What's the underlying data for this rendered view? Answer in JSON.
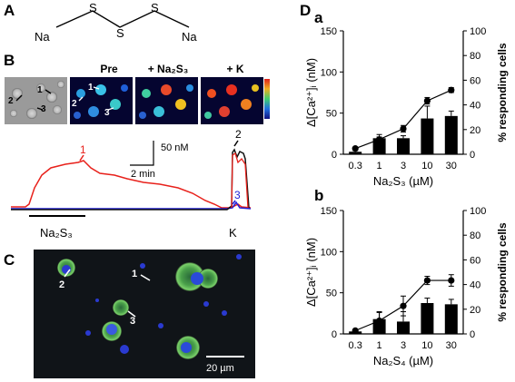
{
  "panel_labels": {
    "A": "A",
    "B": "B",
    "C": "C",
    "D": "D",
    "Da": "a",
    "Db": "b"
  },
  "molecule": {
    "left": "Na",
    "right": "Na",
    "s1": "S",
    "s2": "S",
    "s3": "S"
  },
  "micrographs": {
    "pre_label": "Pre",
    "na2s3_label": "+ Na₂S₃",
    "k_label": "+ K",
    "dic_cell_labels": [
      "1",
      "2",
      "3"
    ],
    "pre_cell_labels": [
      "1",
      "2",
      "3"
    ]
  },
  "trace": {
    "scale_y": "50 nM",
    "scale_x": "2 min",
    "stim_label": "Na₂S₃",
    "k_label": "K",
    "trace_labels": {
      "red": "1",
      "black": "2",
      "blue": "3"
    },
    "colors": {
      "red": "#e8211b",
      "black": "#111111",
      "blue": "#1f1fd6"
    }
  },
  "immuno": {
    "cell_labels": [
      "1",
      "2",
      "3"
    ],
    "scalebar": "20 µm"
  },
  "chart_data": [
    {
      "type": "bar",
      "panel": "a",
      "categories": [
        "0.3",
        "1",
        "3",
        "10",
        "30"
      ],
      "xlabel": "Na₂S₃ (µM)",
      "ylabel": "Δ[Ca²⁺]ᵢ (nM)",
      "y2label": "% responding cells",
      "ylim": [
        0,
        150
      ],
      "y2lim": [
        0,
        100
      ],
      "yticks": [
        0,
        50,
        100,
        150
      ],
      "y2ticks": [
        0,
        20,
        40,
        60,
        80,
        100
      ],
      "series": [
        {
          "kind": "line",
          "axis": "left",
          "values": [
            7,
            18,
            31,
            65,
            78
          ],
          "errors": [
            1,
            3,
            4,
            4,
            3
          ]
        },
        {
          "kind": "bar",
          "axis": "right",
          "values": [
            2,
            13,
            13,
            29,
            31
          ],
          "errors": [
            1,
            3,
            2,
            10,
            4
          ]
        }
      ]
    },
    {
      "type": "bar",
      "panel": "b",
      "categories": [
        "0.3",
        "1",
        "3",
        "10",
        "30"
      ],
      "xlabel": "Na₂S₄ (µM)",
      "ylabel": "Δ[Ca²⁺]ᵢ (nM)",
      "y2label": "% responding cells",
      "ylim": [
        0,
        150
      ],
      "y2lim": [
        0,
        100
      ],
      "yticks": [
        0,
        50,
        100,
        150
      ],
      "y2ticks": [
        0,
        20,
        40,
        60,
        80,
        100
      ],
      "series": [
        {
          "kind": "line",
          "axis": "left",
          "values": [
            4,
            16,
            34,
            65,
            65
          ],
          "errors": [
            1,
            10,
            12,
            5,
            7
          ]
        },
        {
          "kind": "bar",
          "axis": "right",
          "values": [
            2,
            12,
            10,
            25,
            24
          ],
          "errors": [
            1,
            6,
            8,
            4,
            4
          ]
        }
      ]
    }
  ]
}
